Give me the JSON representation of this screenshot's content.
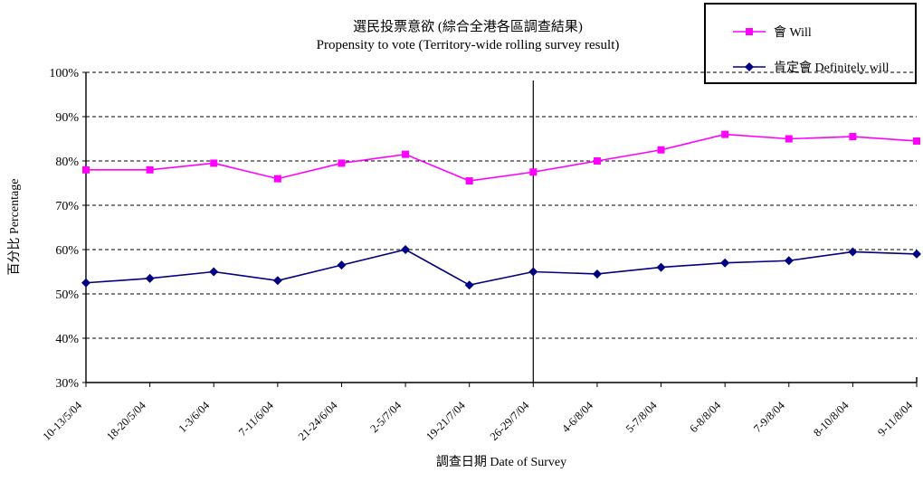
{
  "title": {
    "line1": "選民投票意欲 (綜合全港各區調查結果)",
    "line2": "Propensity to vote (Territory-wide rolling survey result)"
  },
  "legend": {
    "items": [
      {
        "label": "會 Will",
        "color": "#FF00FF",
        "marker": "square"
      },
      {
        "label": "肯定會 Definitely will",
        "color": "#000080",
        "marker": "diamond"
      }
    ]
  },
  "axes": {
    "x_title": "調查日期 Date of Survey",
    "y_title": "百分比 Percentage"
  },
  "chart_data": {
    "type": "line",
    "title": "選民投票意欲 (綜合全港各區調查結果) Propensity to vote (Territory-wide rolling survey result)",
    "categories": [
      "10-13/5/04",
      "18-20/5/04",
      "1-3/6/04",
      "7-11/6/04",
      "21-24/6/04",
      "2-5/7/04",
      "19-21/7/04",
      "26-29/7/04",
      "4-6/8/04",
      "5-7/8/04",
      "6-8/8/04",
      "7-9/8/04",
      "8-10/8/04",
      "9-11/8/04"
    ],
    "series": [
      {
        "name": "會 Will",
        "color": "#FF00FF",
        "marker": "square",
        "values": [
          78,
          78,
          79.5,
          76,
          79.5,
          81.5,
          75.5,
          77.5,
          80,
          82.5,
          86,
          85,
          85.5,
          84.5
        ]
      },
      {
        "name": "肯定會 Definitely will",
        "color": "#000080",
        "marker": "diamond",
        "values": [
          52.5,
          53.5,
          55,
          53,
          56.5,
          60,
          52,
          55,
          54.5,
          56,
          57,
          57.5,
          59.5,
          59
        ]
      }
    ],
    "xlabel": "調查日期 Date of Survey",
    "ylabel": "百分比 Percentage",
    "ylim": [
      30,
      100
    ],
    "ytick_step": 10,
    "ytick_labels": [
      "30%",
      "40%",
      "50%",
      "60%",
      "70%",
      "80%",
      "90%",
      "100%"
    ],
    "grid": "horizontal-dashed",
    "legend_position": "top-right",
    "vline_at_category": "26-29/7/04"
  }
}
